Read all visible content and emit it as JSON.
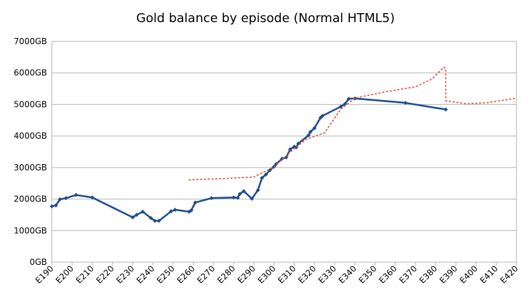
{
  "chart_data": {
    "type": "line",
    "title": "Gold balance by episode (Normal HTML5)",
    "xlabel": "",
    "ylabel": "",
    "xlim": [
      190,
      420
    ],
    "ylim": [
      0,
      7000
    ],
    "grid": true,
    "legend": "none",
    "y_ticks": [
      "0GB",
      "1000GB",
      "2000GB",
      "3000GB",
      "4000GB",
      "5000GB",
      "6000GB",
      "7000GB"
    ],
    "x_ticks": [
      "E190",
      "E200",
      "E210",
      "E220",
      "E230",
      "E240",
      "E250",
      "E260",
      "E270",
      "E280",
      "E290",
      "E300",
      "E310",
      "E320",
      "E330",
      "E340",
      "E350",
      "E360",
      "E370",
      "E380",
      "E390",
      "E400",
      "E410",
      "E420"
    ],
    "series": [
      {
        "color": "#1f4e8c",
        "style": "solid-with-diamond-markers",
        "points": [
          [
            190,
            1770
          ],
          [
            192,
            1800
          ],
          [
            194,
            1990
          ],
          [
            197,
            2030
          ],
          [
            202,
            2130
          ],
          [
            210,
            2050
          ],
          [
            230,
            1420
          ],
          [
            232,
            1500
          ],
          [
            235,
            1600
          ],
          [
            239,
            1400
          ],
          [
            241,
            1310
          ],
          [
            243,
            1310
          ],
          [
            249,
            1610
          ],
          [
            251,
            1660
          ],
          [
            258,
            1600
          ],
          [
            259,
            1640
          ],
          [
            261,
            1890
          ],
          [
            269,
            2030
          ],
          [
            280,
            2050
          ],
          [
            282,
            2040
          ],
          [
            283,
            2160
          ],
          [
            285,
            2250
          ],
          [
            289,
            2010
          ],
          [
            292,
            2280
          ],
          [
            294,
            2670
          ],
          [
            296,
            2780
          ],
          [
            298,
            2920
          ],
          [
            300,
            3030
          ],
          [
            301,
            3110
          ],
          [
            304,
            3280
          ],
          [
            306,
            3320
          ],
          [
            308,
            3580
          ],
          [
            310,
            3660
          ],
          [
            311,
            3640
          ],
          [
            312,
            3760
          ],
          [
            317,
            4020
          ],
          [
            318,
            4130
          ],
          [
            320,
            4250
          ],
          [
            323,
            4580
          ],
          [
            324,
            4640
          ],
          [
            333,
            4930
          ],
          [
            335,
            5010
          ],
          [
            337,
            5180
          ],
          [
            340,
            5190
          ],
          [
            365,
            5050
          ],
          [
            385,
            4840
          ]
        ]
      },
      {
        "color": "#e8553a",
        "style": "dotted",
        "points": [
          [
            258,
            2610
          ],
          [
            275,
            2650
          ],
          [
            290,
            2700
          ],
          [
            300,
            3020
          ],
          [
            310,
            3600
          ],
          [
            316,
            3900
          ],
          [
            325,
            4100
          ],
          [
            333,
            4850
          ],
          [
            340,
            5200
          ],
          [
            355,
            5400
          ],
          [
            370,
            5560
          ],
          [
            378,
            5800
          ],
          [
            384,
            6180
          ],
          [
            385,
            6150
          ],
          [
            385,
            5120
          ],
          [
            395,
            5020
          ],
          [
            405,
            5050
          ],
          [
            420,
            5200
          ]
        ]
      }
    ]
  }
}
